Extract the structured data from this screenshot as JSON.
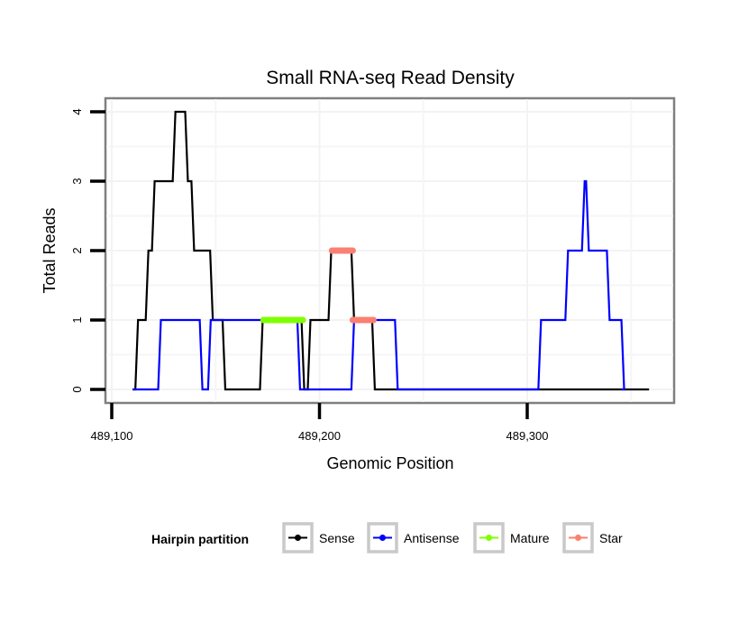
{
  "chart_data": {
    "type": "line",
    "title": "Small RNA-seq Read Density",
    "xlabel": "Genomic Position",
    "ylabel": "Total Reads",
    "xlim": [
      489090,
      489370
    ],
    "ylim": [
      -0.2,
      4.2
    ],
    "x_ticks": [
      489100,
      489200,
      489300
    ],
    "x_tick_labels": [
      "489,100",
      "489,200",
      "489,300"
    ],
    "x_minor_gridlines": [
      489150,
      489250,
      489350
    ],
    "y_ticks": [
      0,
      1,
      2,
      3,
      4
    ],
    "y_tick_labels": [
      "0",
      "1",
      "2",
      "3",
      "4"
    ],
    "grid": true,
    "legend": {
      "title": "Hairpin partition",
      "position": "bottom",
      "entries": [
        "Sense",
        "Antisense",
        "Mature",
        "Star"
      ]
    },
    "series": [
      {
        "name": "Sense",
        "color": "#000000",
        "step": true,
        "points": [
          [
            489110,
            0
          ],
          [
            489112,
            1
          ],
          [
            489117,
            2
          ],
          [
            489120,
            3
          ],
          [
            489130,
            4
          ],
          [
            489136,
            3
          ],
          [
            489139,
            2
          ],
          [
            489148,
            1
          ],
          [
            489154,
            0
          ],
          [
            489172,
            1
          ],
          [
            489192,
            0
          ],
          [
            489195,
            1
          ],
          [
            489205,
            2
          ],
          [
            489216,
            1
          ],
          [
            489226,
            0
          ],
          [
            489358,
            0
          ]
        ]
      },
      {
        "name": "Antisense",
        "color": "#0000FF",
        "step": true,
        "points": [
          [
            489110,
            0
          ],
          [
            489123,
            1
          ],
          [
            489143,
            0
          ],
          [
            489147,
            1
          ],
          [
            489190,
            0
          ],
          [
            489216,
            1
          ],
          [
            489237,
            0
          ],
          [
            489306,
            1
          ],
          [
            489319,
            2
          ],
          [
            489327,
            3
          ],
          [
            489329,
            2
          ],
          [
            489339,
            1
          ],
          [
            489346,
            0
          ],
          [
            489346,
            0
          ]
        ]
      },
      {
        "name": "Mature",
        "color": "#7FFF00",
        "segments": [
          [
            489173,
            489192,
            1
          ]
        ]
      },
      {
        "name": "Star",
        "color": "#FA8072",
        "segments": [
          [
            489206,
            489216,
            2
          ],
          [
            489216,
            489226,
            1
          ]
        ]
      }
    ]
  }
}
